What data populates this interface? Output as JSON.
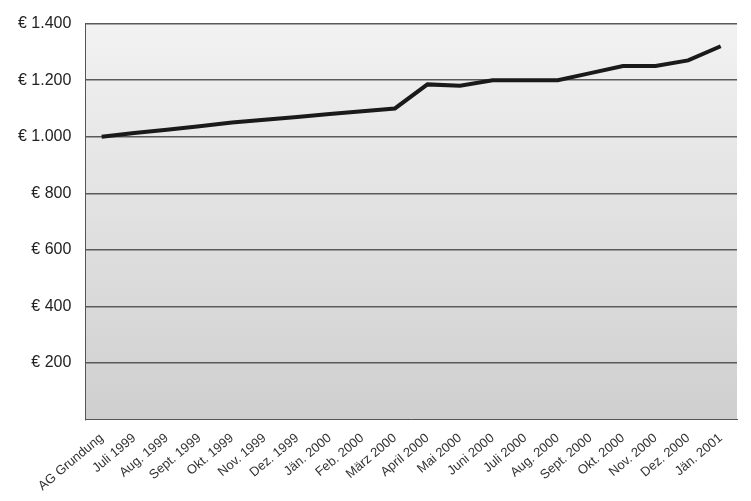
{
  "chart_data": {
    "type": "line",
    "categories": [
      "AG Grundung",
      "Juli 1999",
      "Aug. 1999",
      "Sept. 1999",
      "Okt. 1999",
      "Nov. 1999",
      "Dez. 1999",
      "Jän. 2000",
      "Feb. 2000",
      "März 2000",
      "April 2000",
      "Mai 2000",
      "Juni 2000",
      "Juli 2000",
      "Aug. 2000",
      "Sept. 2000",
      "Okt. 2000",
      "Nov. 2000",
      "Dez. 2000",
      "Jän. 2001"
    ],
    "values": [
      1000,
      1013,
      1025,
      1037,
      1050,
      1060,
      1070,
      1080,
      1090,
      1100,
      1185,
      1180,
      1200,
      1200,
      1200,
      1225,
      1250,
      1250,
      1270,
      1320
    ],
    "color": "#1a1a1a",
    "ylim": [
      0,
      1400
    ],
    "yticks": [
      {
        "value": 200,
        "label": "€ 200"
      },
      {
        "value": 400,
        "label": "€ 400"
      },
      {
        "value": 600,
        "label": "€ 600"
      },
      {
        "value": 800,
        "label": "€ 800"
      },
      {
        "value": 1000,
        "label": "€ 1.000"
      },
      {
        "value": 1200,
        "label": "€ 1.200"
      },
      {
        "value": 1400,
        "label": "€ 1.400"
      }
    ],
    "grid": true
  }
}
